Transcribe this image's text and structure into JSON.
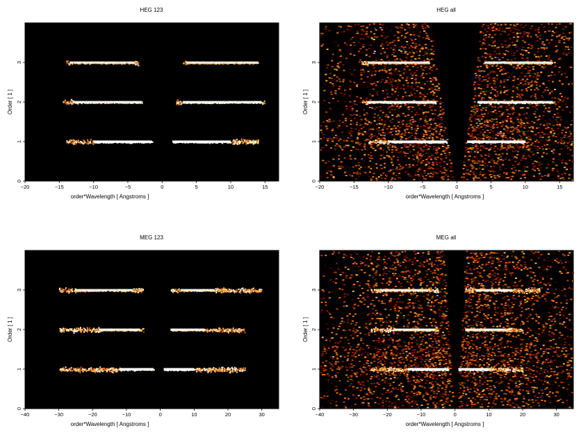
{
  "figure": {
    "background": "#ffffff",
    "plot_background": "#000000"
  },
  "palette": [
    "#3a0400",
    "#7a1a00",
    "#b8400a",
    "#e07418",
    "#f6b04a",
    "#ffe9b0",
    "#ffffff"
  ],
  "chart_data": [
    {
      "type": "heatmap",
      "title": "HEG 123",
      "xlabel": "order*Wavelength [ Angstroms ]",
      "ylabel": "Order [ 1 ]",
      "xlim": [
        -20,
        17
      ],
      "ylim": [
        0,
        4
      ],
      "xticks": [
        -20,
        -15,
        -10,
        -5,
        0,
        5,
        10,
        15
      ],
      "yticks": [
        0,
        1,
        2,
        3
      ],
      "mode": "selected",
      "bands": [
        {
          "order": 1,
          "neg_range": [
            -14,
            -1.5
          ],
          "pos_range": [
            1.5,
            14
          ],
          "core_neg": [
            -10,
            -1.5
          ],
          "core_pos": [
            1.5,
            10
          ],
          "intensity": 1.0
        },
        {
          "order": 2,
          "neg_range": [
            -14.5,
            -3
          ],
          "pos_range": [
            2,
            15
          ],
          "core_neg": [
            -13,
            -3
          ],
          "core_pos": [
            3,
            14.5
          ],
          "intensity": 0.8
        },
        {
          "order": 3,
          "neg_range": [
            -14,
            -3.5
          ],
          "pos_range": [
            3,
            14
          ],
          "core_neg": [
            -13.5,
            -4
          ],
          "core_pos": [
            3.5,
            14
          ],
          "intensity": 0.65
        }
      ]
    },
    {
      "type": "heatmap",
      "title": "HEG all",
      "xlabel": "order*Wavelength [ Angstroms ]",
      "ylabel": "Order [ 1 ]",
      "xlim": [
        -20,
        17
      ],
      "ylim": [
        0,
        4
      ],
      "xticks": [
        -20,
        -15,
        -10,
        -5,
        0,
        5,
        10,
        15
      ],
      "yticks": [
        0,
        1,
        2,
        3
      ],
      "mode": "all",
      "wedge": {
        "x_at_top": [
          -4,
          3.5
        ],
        "x_at_bottom": [
          -0.5,
          0.5
        ]
      },
      "bands": [
        {
          "order": 1,
          "neg_range": [
            -13,
            -1.5
          ],
          "pos_range": [
            1.5,
            10
          ],
          "core_neg": [
            -10,
            -1.5
          ],
          "core_pos": [
            1.5,
            10
          ],
          "intensity": 1.0
        },
        {
          "order": 2,
          "neg_range": [
            -14,
            -3
          ],
          "pos_range": [
            3,
            14
          ],
          "core_neg": [
            -13,
            -3
          ],
          "core_pos": [
            3,
            14
          ],
          "intensity": 0.8
        },
        {
          "order": 3,
          "neg_range": [
            -14,
            -4
          ],
          "pos_range": [
            4,
            14
          ],
          "core_neg": [
            -13,
            -4
          ],
          "core_pos": [
            4,
            14
          ],
          "intensity": 0.65
        }
      ]
    },
    {
      "type": "heatmap",
      "title": "MEG 123",
      "xlabel": "order*Wavelength [ Angstroms ]",
      "ylabel": "Order [ 1 ]",
      "xlim": [
        -40,
        35
      ],
      "ylim": [
        0,
        4
      ],
      "xticks": [
        -40,
        -30,
        -20,
        -10,
        0,
        10,
        20,
        30
      ],
      "yticks": [
        0,
        1,
        2,
        3
      ],
      "mode": "selected",
      "bands": [
        {
          "order": 1,
          "neg_range": [
            -30,
            -2
          ],
          "pos_range": [
            1,
            25
          ],
          "core_neg": [
            -12,
            -2
          ],
          "core_pos": [
            1,
            10
          ],
          "intensity": 1.0
        },
        {
          "order": 2,
          "neg_range": [
            -30,
            -5
          ],
          "pos_range": [
            3,
            25
          ],
          "core_neg": [
            -18,
            -6
          ],
          "core_pos": [
            3,
            13
          ],
          "intensity": 0.75
        },
        {
          "order": 3,
          "neg_range": [
            -30,
            -5
          ],
          "pos_range": [
            3,
            30
          ],
          "core_neg": [
            -25,
            -8
          ],
          "core_pos": [
            6,
            16
          ],
          "intensity": 0.7
        }
      ]
    },
    {
      "type": "heatmap",
      "title": "MEG all",
      "xlabel": "order*Wavelength [ Angstroms ]",
      "ylabel": "Order [ 1 ]",
      "xlim": [
        -40,
        35
      ],
      "ylim": [
        0,
        4
      ],
      "xticks": [
        -40,
        -30,
        -20,
        -10,
        0,
        10,
        20,
        30
      ],
      "yticks": [
        0,
        1,
        2,
        3
      ],
      "mode": "all",
      "wedge": {
        "x_at_top": [
          -3.5,
          3
        ],
        "x_at_bottom": [
          -0.5,
          0.5
        ]
      },
      "bands": [
        {
          "order": 1,
          "neg_range": [
            -25,
            -2
          ],
          "pos_range": [
            1,
            20
          ],
          "core_neg": [
            -14,
            -2
          ],
          "core_pos": [
            1,
            10
          ],
          "intensity": 1.0
        },
        {
          "order": 2,
          "neg_range": [
            -25,
            -5
          ],
          "pos_range": [
            3,
            20
          ],
          "core_neg": [
            -18,
            -6
          ],
          "core_pos": [
            3,
            15
          ],
          "intensity": 0.75
        },
        {
          "order": 3,
          "neg_range": [
            -25,
            -5
          ],
          "pos_range": [
            3,
            25
          ],
          "core_neg": [
            -22,
            -8
          ],
          "core_pos": [
            6,
            17
          ],
          "intensity": 0.7
        }
      ]
    }
  ]
}
